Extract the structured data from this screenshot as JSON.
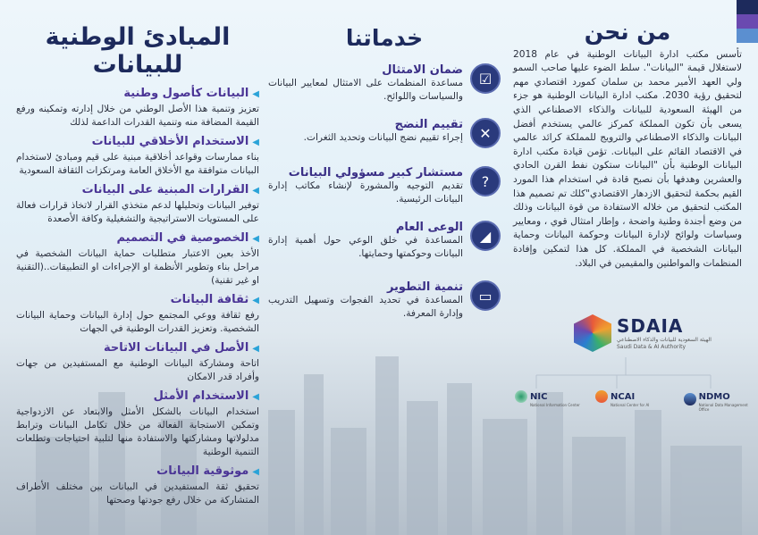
{
  "about": {
    "title": "من نحن",
    "body": "تأسس مكتب ادارة البيانات الوطنية في عام 2018 لاستغلال قيمة \"البيانات\". سلط الضوء عليها صاحب السمو ولي العهد الأمير محمد بن سلمان كمورد اقتصادي مهم لتحقيق رؤية 2030. مكتب ادارة البيانات الوطنية هو جزء من الهيئة السعودية للبيانات والذكاء الاصطناعي الذي يسعى بأن تكون المملكة كمركز عالمي يستخدم أفضل البيانات والذكاء الاصطناعي والترويج للمملكة كرائد عالمي في الاقتصاد القائم على البيانات. تؤمن قيادة مكتب ادارة البيانات الوطنية بأن \"البيانات ستكون نفط القرن الحادي والعشرين وهدفها بأن نصبح قادة في استخدام هذا المورد القيم بحكمة لتحقيق الازدهار الاقتصادي\"كلك تم تصميم هذا المكتب لتحقيق من خلاله الاستفادة من قوة البيانات وذلك من وضع أجندة وطنية واضحة ، وإطار امتثال قوي ، ومعايير وسياسات ولوائح لإدارة البيانات وحوكمة البيانات وحماية البيانات الشخصية في المملكة. كل هذا لتمكين وإفادة المنظمات والمواطنين والمقيمين في البلاد."
  },
  "services": {
    "title": "خدماتنا",
    "items": [
      {
        "title": "ضمان الامتثال",
        "desc": "مساعدة المنظمات على الامتثال لمعايير البيانات والسياسات واللوائح.",
        "icon": "clipboard-checklist-icon"
      },
      {
        "title": "تقييم النضج",
        "desc": "إجراء تقييم نضج البيانات وتحديد الثغرات.",
        "icon": "strategy-board-icon"
      },
      {
        "title": "مستشار كبير مسؤولي البيانات",
        "desc": "تقديم التوجيه والمشورة لإنشاء مكاتب إدارة البيانات الرئيسية.",
        "icon": "consultation-group-icon"
      },
      {
        "title": "الوعى العام",
        "desc": "المساعدة في خلق الوعي حول أهمية إدارة البيانات وحوكمتها وحمايتها.",
        "icon": "megaphone-icon"
      },
      {
        "title": "تنمية التطوير",
        "desc": "المساعدة في تحديد الفجوات وتسهيل التدريب وإدارة المعرفة.",
        "icon": "training-board-icon"
      }
    ]
  },
  "principles": {
    "title": "المبادئ الوطنية للبيانات",
    "items": [
      {
        "title": "البيانات كأصول وطنية",
        "desc": "تعزيز وتنمية هذا الأصل الوطني من خلال إدارته وتمكينه ورفع القيمة المضافة منه وتنمية القدرات الداعمة لذلك"
      },
      {
        "title": "الاستخدام الأخلاقي للبيانات",
        "desc": "بناء ممارسات وقواعد أخلاقية مبنية على قيم ومبادئ لاستخدام البيانات متوافقة مع الأخلاق العامة ومرتكزات الثقافة السعودية"
      },
      {
        "title": "القرارات المبنية على البيانات",
        "desc": "توفير البيانات وتحليلها لدعم متخذي القرار لاتخاذ قرارات فعالة على المستويات الاستراتيجية والتشغيلية وكافة الأصعدة"
      },
      {
        "title": "الخصوصية في التصميم",
        "desc": "الأخذ بعين الاعتبار متطلبات حماية البيانات الشخصية في مراحل بناء وتطوير الأنظمة او الإجراءات او التطبيقات..(التقنية او غير تقنية)"
      },
      {
        "title": "ثقافة البيانات",
        "desc": "رفع ثقافة ووعي المجتمع حول إدارة البيانات وحماية البيانات الشخصية. وتعزيز القدرات الوطنية في الجهات"
      },
      {
        "title": "الأصل في البيانات الاتاحة",
        "desc": "اتاحة ومشاركة البيانات الوطنية مع المستفيدين من جهات وأفراد قدر الامكان"
      },
      {
        "title": "الاستخدام الأمثل",
        "desc": "استخدام البيانات بالشكل الأمثل والابتعاد عن الازدواجية وتمكين الاستجابة الفعالة من خلال تكامل البيانات وترابط مدلولاتها ومشاركتها والاستفادة منها لتلبية احتياجات وتطلعات التنمية الوطنية"
      },
      {
        "title": "موثوقية البيانات",
        "desc": "تحقيق ثقة المستفيدين في البيانات بين مختلف الأطراف المتشاركة من خلال رفع جودتها وصحتها"
      }
    ]
  },
  "logos": {
    "sdaia": {
      "name": "SDAIA",
      "ar": "الهيئة السعودية للبيانات والذكاء الاصطناعي",
      "en": "Saudi Data & AI Authority"
    },
    "subs": [
      {
        "name": "NIC",
        "sub": "National Information Center"
      },
      {
        "name": "NCAI",
        "sub": "National Center for AI"
      },
      {
        "name": "NDMO",
        "sub": "National Data Management Office"
      }
    ]
  },
  "colors": {
    "navy": "#1d2a5c",
    "purple": "#4b3596",
    "bullet": "#2aa3d8",
    "stripes": [
      "#1d2a5c",
      "#6a4ab0",
      "#5b8fd0"
    ]
  }
}
